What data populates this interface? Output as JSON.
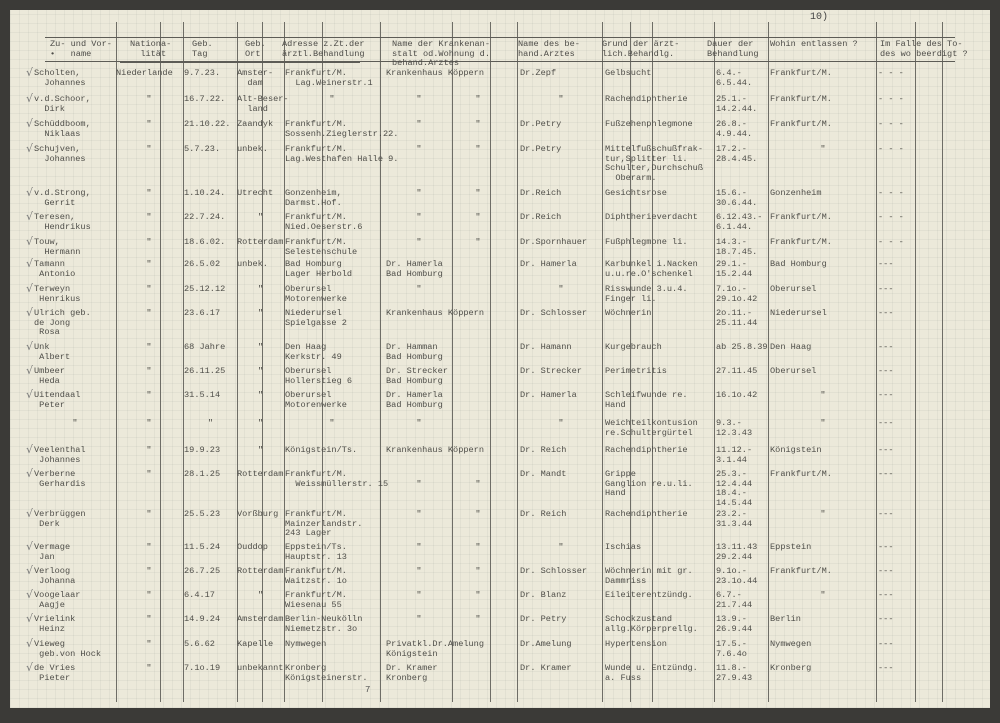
{
  "page_number": "10)",
  "footer_number": "7",
  "check_mark": "√",
  "headers": [
    "Zu- und Vor-\n•   name",
    "Nationa-\n  lität",
    "Geb.\nTag",
    "Geb.\nOrt",
    "Adresse z.Zt.der\närztl.Behandlung",
    "Name der Krankenan-\nstalt od.Wohnung d.\nbehand.Arztes",
    "Name des be-\nhand.Arztes",
    "Grund der ärzt-\nlich.Behandlg.",
    "Dauer der\nBehandlung",
    "Wohin entlassen ?",
    "Im Falle des To-\ndes wo beerdigt ?"
  ],
  "rows": [
    [
      "Scholten,\n  Johannes",
      "Niederlande",
      "9.7.23.",
      "Amster-\n  dam",
      "Frankfurt/M.\n  Lag.Weinerstr.1",
      "Krankenhaus Köppern",
      "",
      "Dr.Zepf",
      "Gelbsucht",
      "6.4.-\n6.5.44.",
      "Frankfurt/M.",
      "- - -"
    ],
    [
      "v.d.Schoor,\n  Dirk",
      "\"",
      "16.7.22.",
      "Alt-Beser-\n  land",
      "\"",
      "\"",
      "\"",
      "\"",
      "Rachendiphtherie",
      "25.1.-\n14.2.44.",
      "Frankfurt/M.",
      "- - -"
    ],
    [
      "Schüddboom,\n  Niklaas",
      "\"",
      "21.10.22.",
      "Zaandyk",
      "Frankfurt/M.\nSossenh.Zieglerstr.22.",
      "\"",
      "\"",
      "Dr.Petry",
      "Fußzehenphlegmone",
      "26.8.-\n4.9.44.",
      "Frankfurt/M.",
      "- - -"
    ],
    [
      "Schujven,\n  Johannes",
      "\"",
      "5.7.23.",
      "unbek.",
      "Frankfurt/M.\nLag.Westhafen Halle 9.",
      "\"",
      "\"",
      "Dr.Petry",
      "Mittelfußschußfrak-\ntur,Splitter li.\nSchulter,Durchschuß\n  Oberarm.",
      "17.2.-\n28.4.45.",
      "\"",
      "- - -"
    ],
    [
      "v.d.Strong,\n  Gerrit",
      "\"",
      "1.10.24.",
      "Utrecht",
      "Gonzenheim,\nDarmst.Hof.",
      "\"",
      "\"",
      "Dr.Reich",
      "Gesichtsrose",
      "15.6.-\n30.6.44.",
      "Gonzenheim",
      "- - -"
    ],
    [
      "Teresen,\n  Hendrikus",
      "\"",
      "22.7.24.",
      "\"",
      "Frankfurt/M.\nNied.Oeserstr.6",
      "\"",
      "\"",
      "Dr.Reich",
      "Diphtherieverdacht",
      "6.12.43.-\n6.1.44.",
      "Frankfurt/M.",
      "- - -"
    ],
    [
      "Touw,\n  Hermann",
      "\"",
      "18.6.02.",
      "Rotterdam",
      "Frankfurt/M.\nSelestenschule",
      "\"",
      "\"",
      "Dr.Spornhauer",
      "Fußphlegmone li.",
      "14.3.-\n18.7.45.",
      "Frankfurt/M.",
      "- - -"
    ],
    [
      "Tamann\n Antonio",
      "\"",
      "26.5.02",
      "unbek.",
      "Bad Homburg\nLager Herbold",
      "Dr. Hamerla\nBad Homburg",
      "",
      "Dr. Hamerla",
      "Karbunkel i.Nacken\nu.u.re.O'schenkel",
      "29.1.-\n15.2.44",
      "Bad Homburg",
      "---"
    ],
    [
      "Terweyn\n Henrikus",
      "\"",
      "25.12.12",
      "\"",
      "Oberursel\nMotorenwerke",
      "\"",
      "",
      "\"",
      "Risswunde 3.u.4.\nFinger li.",
      "7.1o.-\n29.1o.42",
      "Oberursel",
      "---"
    ],
    [
      "Ulrich geb.\nde Jong\n Rosa",
      "\"",
      "23.6.17",
      "\"",
      "Niederursel\nSpielgasse 2",
      "Krankenhaus Köppern",
      "",
      "Dr. Schlosser",
      "Wöchnerin",
      "2o.11.-\n25.11.44",
      "Niederursel",
      "---"
    ],
    [
      "Unk\n Albert",
      "\"",
      "68 Jahre",
      "\"",
      "Den Haag\nKerkstr. 49",
      "Dr. Hamman\nBad Homburg",
      "",
      "Dr. Hamann",
      "Kurgebrauch",
      "ab 25.8.39",
      "Den Haag",
      "---"
    ],
    [
      "Umbeer\n Heda",
      "\"",
      "26.11.25",
      "\"",
      "Oberursel\nHollerstieg 6",
      "Dr. Strecker\nBad Homburg",
      "",
      "Dr. Strecker",
      "Perimetritis",
      "27.11.45",
      "Oberursel",
      "---"
    ],
    [
      "Uitendaal\n Peter",
      "\"",
      "31.5.14",
      "\"",
      "Oberursel\nMotorenwerke",
      "Dr. Hamerla\nBad Homburg",
      "",
      "Dr. Hamerla",
      "Schleifwunde re.\nHand",
      "16.1o.42",
      "\"",
      "---"
    ],
    [
      "\"",
      "\"",
      "\"",
      "\"",
      "\"",
      "\"",
      "",
      "\"",
      "Weichteilkontusion\nre.Schultergürtel",
      "9.3.-\n12.3.43",
      "\"",
      "---"
    ],
    [
      "Veelenthal\n Johannes",
      "\"",
      "19.9.23",
      "\"",
      "Königstein/Ts.",
      "Krankenhaus Köppern",
      "",
      "Dr. Reich",
      "Rachendiphtherie",
      "11.12.-\n3.1.44",
      "Königstein",
      "---"
    ],
    [
      "Verberne\n Gerhardis",
      "\"",
      "28.1.25",
      "Rotterdam",
      "Frankfurt/M.\n  Weissmüllerstr. 15",
      "\n\"",
      "\n\"",
      "Dr. Mandt",
      "Grippe\nGanglion re.u.li.\nHand",
      "25.3.-\n12.4.44\n18.4.-\n14.5.44",
      "Frankfurt/M.",
      "---"
    ],
    [
      "Verbrüggen\n Derk",
      "\"",
      "25.5.23",
      "Vorßburg",
      "Frankfurt/M.\nMainzerlandstr.\n243 Lager",
      "\"",
      "\"",
      "Dr. Reich",
      "Rachendiphtherie",
      "23.2.-\n31.3.44",
      "\"",
      "---"
    ],
    [
      "Vermage\n Jan",
      "\"",
      "11.5.24",
      "Ouddop",
      "Eppstein/Ts.\nHauptstr. 13",
      "\"",
      "\"",
      "\"",
      "Ischias",
      "13.11.43\n29.2.44",
      "Eppstein",
      "---"
    ],
    [
      "Verloog\n Johanna",
      "\"",
      "26.7.25",
      "Rotterdam",
      "Frankfurt/M.\nWaitzstr. 1o",
      "\"",
      "\"",
      "Dr. Schlosser",
      "Wöchnerin mit gr.\nDammriss",
      "9.1o.-\n23.1o.44",
      "Frankfurt/M.",
      "---"
    ],
    [
      "Voogelaar\n Aagje",
      "\"",
      "6.4.17",
      "\"",
      "Frankfurt/M.\nWiesenau 55",
      "\"",
      "\"",
      "Dr. Blanz",
      "Eileiterentzündg.",
      "6.7.-\n21.7.44",
      "\"",
      "---"
    ],
    [
      "Vrielink\n Heinz",
      "\"",
      "14.9.24",
      "Amsterdam",
      "Berlin-Neukölln\nNiemetzstr. 3o",
      "\"",
      "\"",
      "Dr. Petry",
      "Schockzustand\nallg.Körperprellg.",
      "13.9.-\n26.9.44",
      "Berlin",
      "---"
    ],
    [
      "Vieweg\n geb.von Hock",
      "\"",
      "5.6.62",
      "Kapelle",
      "Nymwegen",
      "Privatkl.Dr.Amelung\nKönigstein",
      "",
      "Dr.Amelung",
      "Hypertension",
      "17.5.-\n7.6.4o",
      "Nymwegen",
      "---"
    ],
    [
      "de Vries\n Pieter",
      "\"",
      "7.1o.19",
      "unbekannt",
      "Kronberg\nKönigsteinerstr.",
      "Dr. Kramer\nKronberg",
      "",
      "Dr. Kramer",
      "Wunde u. Entzündg.\na. Fuss",
      "11.8.-\n27.9.43",
      "Kronberg",
      "---"
    ]
  ]
}
